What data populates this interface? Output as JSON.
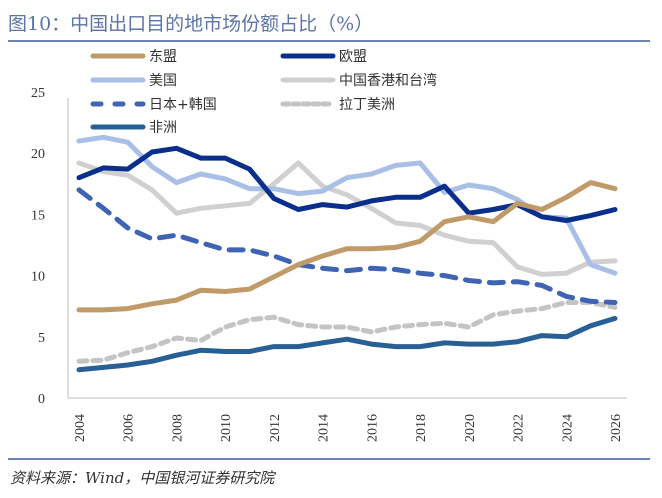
{
  "title": "图10：中国出口目的地市场份额占比（%）",
  "source": "资料来源：Wind，中国银河证券研究院",
  "chart_data": {
    "type": "line",
    "title": "中国出口目的地市场份额占比（%）",
    "xlabel": "",
    "ylabel": "",
    "ylim": [
      0,
      25
    ],
    "yticks": [
      "0",
      "5",
      "10",
      "15",
      "20",
      "25"
    ],
    "xticks": [
      "2004",
      "2006",
      "2008",
      "2010",
      "2012",
      "2014",
      "2016",
      "2018",
      "2020",
      "2022",
      "2024",
      "2026"
    ],
    "x": [
      2004,
      2005,
      2006,
      2007,
      2008,
      2009,
      2010,
      2011,
      2012,
      2013,
      2014,
      2015,
      2016,
      2017,
      2018,
      2019,
      2020,
      2021,
      2022,
      2023,
      2024,
      2025,
      2026
    ],
    "grid": false,
    "legend_position": "top",
    "series": [
      {
        "name": "东盟",
        "color": "#c09a69",
        "dash": "solid",
        "values": [
          7.2,
          7.2,
          7.3,
          7.7,
          8.0,
          8.8,
          8.7,
          8.9,
          9.9,
          10.9,
          11.6,
          12.2,
          12.2,
          12.3,
          12.8,
          14.4,
          14.8,
          14.4,
          15.9,
          15.4,
          16.4,
          17.6,
          17.1
        ]
      },
      {
        "name": "欧盟",
        "color": "#0a2e8c",
        "dash": "solid",
        "values": [
          18.0,
          18.8,
          18.7,
          20.1,
          20.4,
          19.6,
          19.6,
          18.7,
          16.3,
          15.4,
          15.8,
          15.6,
          16.1,
          16.4,
          16.4,
          17.3,
          15.1,
          15.4,
          15.8,
          14.8,
          14.5,
          14.9,
          15.4
        ]
      },
      {
        "name": "美国",
        "color": "#a9bfe8",
        "dash": "solid",
        "values": [
          21.0,
          21.3,
          20.9,
          18.9,
          17.6,
          18.3,
          17.9,
          17.1,
          17.1,
          16.7,
          16.9,
          18.0,
          18.3,
          19.0,
          19.2,
          16.8,
          17.4,
          17.1,
          16.2,
          14.8,
          14.7,
          10.9,
          10.2
        ]
      },
      {
        "name": "中国香港和台湾",
        "color": "#d0d0d0",
        "dash": "solid",
        "values": [
          19.2,
          18.5,
          18.2,
          17.0,
          15.1,
          15.5,
          15.7,
          15.9,
          17.5,
          19.2,
          17.3,
          16.6,
          15.5,
          14.3,
          14.1,
          13.3,
          12.8,
          12.7,
          10.7,
          10.1,
          10.2,
          11.1,
          11.2
        ]
      },
      {
        "name": "日本+韩国",
        "color": "#3f64b3",
        "dash": "dash",
        "values": [
          17.0,
          15.5,
          13.9,
          13.0,
          13.3,
          12.7,
          12.1,
          12.1,
          11.6,
          10.9,
          10.6,
          10.4,
          10.6,
          10.5,
          10.2,
          10.0,
          9.6,
          9.4,
          9.5,
          9.2,
          8.3,
          7.9,
          7.8
        ]
      },
      {
        "name": "拉丁美洲",
        "color": "#c4c4c4",
        "dash": "dot",
        "values": [
          3.0,
          3.1,
          3.7,
          4.2,
          4.9,
          4.7,
          5.8,
          6.4,
          6.6,
          6.0,
          5.8,
          5.8,
          5.4,
          5.8,
          6.0,
          6.1,
          5.8,
          6.8,
          7.1,
          7.3,
          7.8,
          7.8,
          7.4
        ]
      },
      {
        "name": "非洲",
        "color": "#286096",
        "dash": "solid",
        "values": [
          2.3,
          2.5,
          2.7,
          3.0,
          3.5,
          3.9,
          3.8,
          3.8,
          4.2,
          4.2,
          4.5,
          4.8,
          4.4,
          4.2,
          4.2,
          4.5,
          4.4,
          4.4,
          4.6,
          5.1,
          5.0,
          5.9,
          6.5
        ]
      }
    ]
  }
}
